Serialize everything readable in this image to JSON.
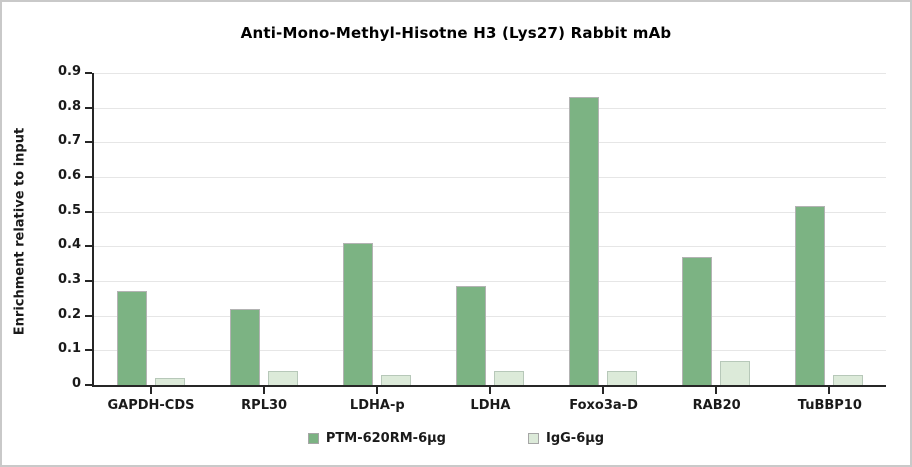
{
  "chart_data": {
    "type": "bar",
    "title": "Anti-Mono-Methyl-Hisotne H3 (Lys27) Rabbit mAb",
    "xlabel": "",
    "ylabel": "Enrichment relative to input",
    "ylim": [
      0,
      0.9
    ],
    "ytick_step": 0.1,
    "grid": true,
    "legend_position": "bottom",
    "categories": [
      "GAPDH-CDS",
      "RPL30",
      "LDHA-p",
      "LDHA",
      "Foxo3a-D",
      "RAB20",
      "TuBBP10"
    ],
    "series": [
      {
        "name": "PTM-620RM-6µg",
        "fill": "#7cb383",
        "border": "#b3b3b3",
        "values": [
          0.27,
          0.22,
          0.41,
          0.285,
          0.83,
          0.37,
          0.515
        ]
      },
      {
        "name": "IgG-6µg",
        "fill": "#dcead9",
        "border": "#b7c8b9",
        "values": [
          0.02,
          0.04,
          0.03,
          0.04,
          0.04,
          0.07,
          0.03
        ]
      }
    ],
    "colors": {
      "background": "#ffffff",
      "frame_border": "#c9c9c9",
      "axis": "#262626",
      "grid": "#e6e6e6",
      "text": "#1a1a1a",
      "title_text": "#000000"
    }
  }
}
